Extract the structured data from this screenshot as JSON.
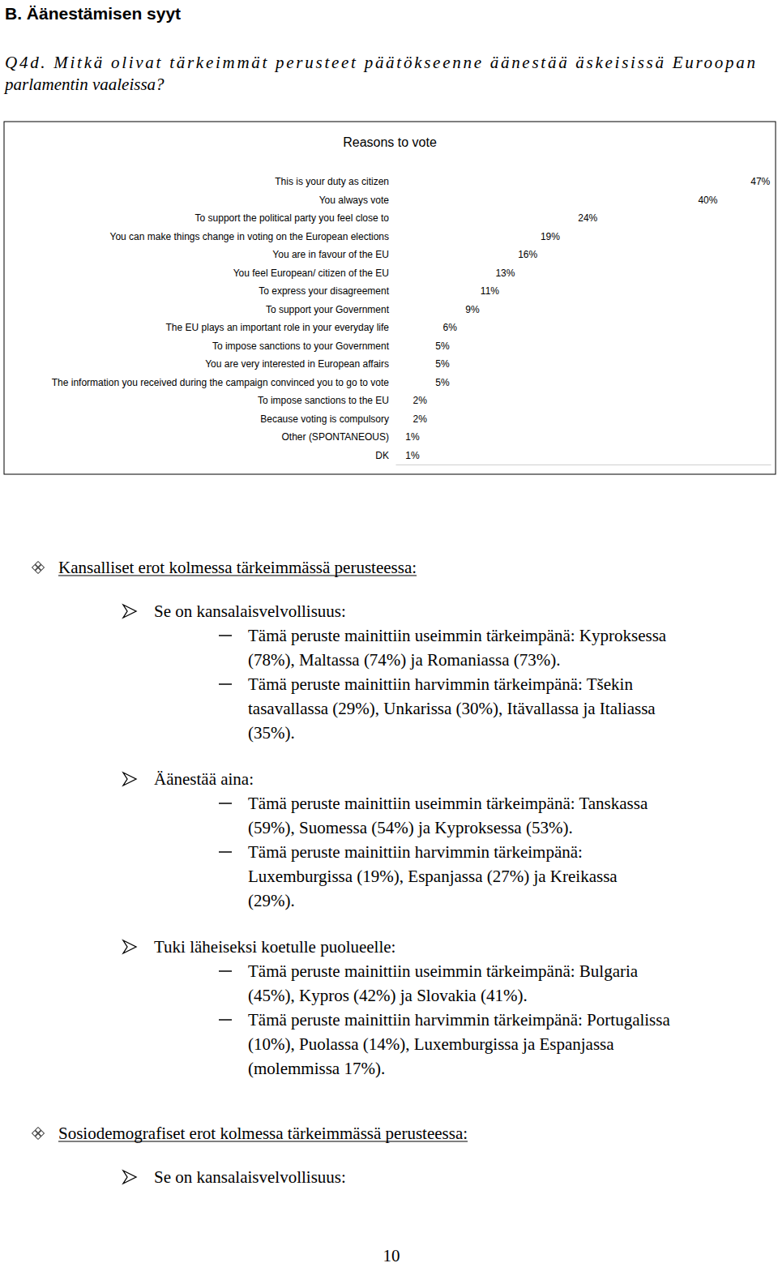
{
  "page": {
    "heading": "B. Äänestämisen syyt",
    "question": [
      "Q4d. Mitkä olivat tärkeimmät perusteet päätökseenne äänestää äskeisissä Euroopan",
      "parlamentin vaaleissa?"
    ],
    "sections": [
      {
        "title": "Kansalliset erot kolmessa tärkeimmässä perusteessa:",
        "items": [
          {
            "title": "Se on kansalaisvelvollisuus:",
            "points": [
              [
                "Tämä peruste mainittiin useimmin tärkeimpänä: Kyproksessa",
                "(78%), Maltassa (74%) ja Romaniassa (73%)."
              ],
              [
                "Tämä peruste mainittiin harvimmin tärkeimpänä: Tšekin",
                "tasavallassa (29%), Unkarissa (30%), Itävallassa ja Italiassa",
                "(35%)."
              ]
            ]
          },
          {
            "title": "Äänestää aina:",
            "points": [
              [
                "Tämä peruste mainittiin useimmin tärkeimpänä: Tanskassa",
                "(59%), Suomessa (54%) ja Kyproksessa (53%)."
              ],
              [
                "Tämä peruste mainittiin harvimmin tärkeimpänä:",
                "Luxemburgissa (19%), Espanjassa (27%) ja Kreikassa",
                "(29%)."
              ]
            ]
          },
          {
            "title": "Tuki läheiseksi koetulle puolueelle:",
            "points": [
              [
                "Tämä peruste mainittiin useimmin tärkeimpänä: Bulgaria",
                "(45%), Kypros (42%) ja Slovakia (41%)."
              ],
              [
                "Tämä peruste mainittiin harvimmin tärkeimpänä: Portugalissa",
                "(10%), Puolassa (14%), Luxemburgissa ja Espanjassa",
                "(molemmissa 17%)."
              ]
            ]
          }
        ]
      },
      {
        "title": "Sosiodemografiset erot kolmessa tärkeimmässä perusteessa:",
        "items": [
          {
            "title": "Se on kansalaisvelvollisuus:"
          }
        ]
      }
    ],
    "page_number": "10"
  },
  "chart_data": {
    "type": "bar",
    "title": "Reasons to vote",
    "orientation": "horizontal",
    "categories": [
      "This is your duty as citizen",
      "You always vote",
      "To support the political party you feel close to",
      "You can make things change in voting on the European elections",
      "You are in favour of the EU",
      "You feel European/ citizen of the EU",
      "To express your disagreement",
      "To support your Government",
      "The EU plays an important role in your everyday life",
      "To impose sanctions to your Government",
      "You are very interested in European affairs",
      "The information you received during the campaign convinced you to go to vote",
      "To impose sanctions to the EU",
      "Because voting is compulsory",
      "Other (SPONTANEOUS)",
      "DK"
    ],
    "values": [
      47,
      40,
      24,
      19,
      16,
      13,
      11,
      9,
      6,
      5,
      5,
      5,
      2,
      2,
      1,
      1
    ],
    "value_labels": [
      "47%",
      "40%",
      "24%",
      "19%",
      "16%",
      "13%",
      "11%",
      "9%",
      "6%",
      "5%",
      "5%",
      "5%",
      "2%",
      "2%",
      "1%",
      "1%"
    ],
    "data_labels": true,
    "color": "#ffffff",
    "xlim": [
      0,
      50
    ],
    "xticks": [],
    "tick_labels": "y",
    "grid": false
  }
}
